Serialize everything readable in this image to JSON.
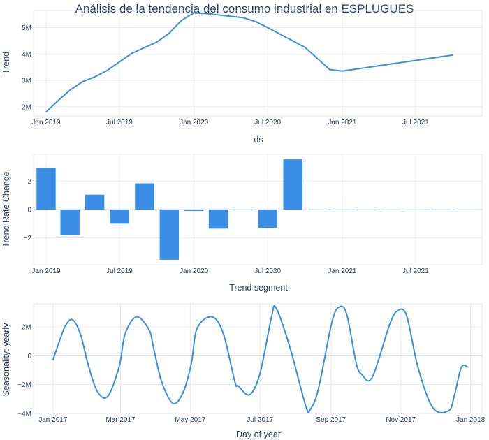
{
  "title": "Análisis de la tendencia del consumo industrial en ESPLUGUES",
  "colors": {
    "line": "#3a8ee6",
    "bar": "#3a8ee6",
    "text": "#2a3f5f",
    "grid": "#e8ecf2"
  },
  "chart_data": [
    {
      "type": "line",
      "title": "Análisis de la tendencia del consumo industrial en ESPLUGUES",
      "xlabel": "ds",
      "ylabel": "Trend",
      "x_ticks": [
        "Jan 2019",
        "Jul 2019",
        "Jan 2020",
        "Jul 2020",
        "Jan 2021",
        "Jul 2021"
      ],
      "y_ticks": [
        "2M",
        "3M",
        "4M",
        "5M"
      ],
      "ylim": [
        1650000,
        5650000
      ],
      "grid": true,
      "x": [
        "2019-01-01",
        "2019-02-01",
        "2019-03-01",
        "2019-04-01",
        "2019-05-01",
        "2019-06-01",
        "2019-08-01",
        "2019-10-01",
        "2019-11-01",
        "2019-12-01",
        "2020-01-01",
        "2020-02-01",
        "2020-05-01",
        "2020-06-01",
        "2020-07-01",
        "2020-10-01",
        "2020-12-01",
        "2021-01-01",
        "2021-10-01"
      ],
      "y": [
        1800000,
        2250000,
        2630000,
        2950000,
        3130000,
        3380000,
        4030000,
        4450000,
        4790000,
        5270000,
        5560000,
        5530000,
        5380000,
        5230000,
        5000000,
        4250000,
        3410000,
        3350000,
        3960000
      ]
    },
    {
      "type": "bar",
      "xlabel": "Trend segment",
      "ylabel": "Trend Rate Change",
      "x_ticks": [
        "Jan 2019",
        "Jul 2019",
        "Jan 2020",
        "Jul 2020",
        "Jan 2021",
        "Jul 2021"
      ],
      "y_ticks": [
        "−2",
        "0",
        "2"
      ],
      "ylim": [
        -3.9,
        3.9
      ],
      "grid": true,
      "categories": [
        "2019-01-01",
        "2019-03-01",
        "2019-05-01",
        "2019-07-01",
        "2019-09-01",
        "2019-11-01",
        "2020-01-01",
        "2020-03-01",
        "2020-05-01",
        "2020-07-01",
        "2020-09-01",
        "2020-11-01",
        "2021-01-01",
        "2021-03-01",
        "2021-05-01",
        "2021-07-01",
        "2021-09-01",
        "2021-11-01"
      ],
      "values": [
        2.95,
        -1.8,
        1.05,
        -1.0,
        1.85,
        -3.55,
        -0.1,
        -1.35,
        -0.03,
        -1.3,
        3.55,
        -0.02,
        -0.02,
        -0.02,
        -0.02,
        -0.02,
        0.0,
        0.0
      ]
    },
    {
      "type": "line",
      "xlabel": "Day of year",
      "ylabel": "Seasonality: yearly",
      "x_ticks": [
        "Jan 2017",
        "Mar 2017",
        "May 2017",
        "Jul 2017",
        "Sep 2017",
        "Nov 2017",
        "Jan 2018"
      ],
      "y_ticks": [
        "−4M",
        "−2M",
        "0",
        "2M"
      ],
      "ylim": [
        -4000000,
        3600000
      ],
      "grid": true,
      "x": [
        1,
        7,
        12,
        18,
        25,
        32,
        40,
        49,
        59,
        64,
        74,
        85,
        89,
        96,
        106,
        115,
        122,
        127,
        140,
        150,
        160,
        163,
        173,
        182,
        192,
        196,
        208,
        222,
        226,
        233,
        245,
        252,
        258,
        266,
        271,
        280,
        295,
        302,
        310,
        320,
        333,
        347,
        352,
        358,
        364
      ],
      "y": [
        -300000,
        1100000,
        2100000,
        2500000,
        1500000,
        -700000,
        -2500000,
        -2800000,
        -700000,
        1500000,
        2700000,
        1800000,
        500000,
        -1800000,
        -3300000,
        -2500000,
        -500000,
        1900000,
        2700000,
        1500000,
        -1800000,
        -2100000,
        -2700000,
        -1200000,
        2700000,
        3300000,
        600000,
        -3500000,
        -3700000,
        -2300000,
        2400000,
        3400000,
        2800000,
        -500000,
        -1300000,
        -1500000,
        2100000,
        3100000,
        2800000,
        -800000,
        -3600000,
        -3800000,
        -2700000,
        -800000,
        -800000
      ]
    }
  ]
}
